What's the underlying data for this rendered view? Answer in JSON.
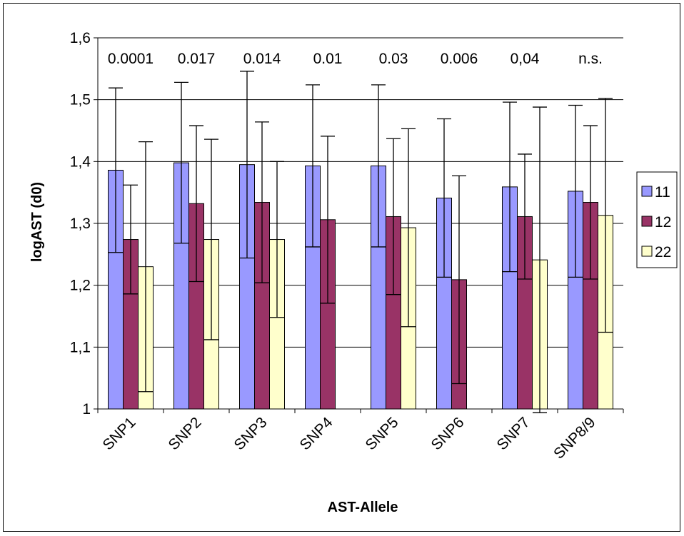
{
  "chart_data": {
    "type": "bar",
    "xlabel": "AST-Allele",
    "ylabel": "logAST (d0)",
    "ylim": [
      1,
      1.6
    ],
    "yticks": [
      "1",
      "1,1",
      "1,2",
      "1,3",
      "1,4",
      "1,5",
      "1,6"
    ],
    "grid": true,
    "legend_position": "right",
    "categories": [
      "SNP1",
      "SNP2",
      "SNP3",
      "SNP4",
      "SNP5",
      "SNP6",
      "SNP7",
      "SNP8/9"
    ],
    "annotations": [
      "0.0001",
      "0.017",
      "0.014",
      "0.01",
      "0.03",
      "0.006",
      "0,04",
      "n.s."
    ],
    "series": [
      {
        "name": "11",
        "color": "#9999ff",
        "values": [
          1.386,
          1.398,
          1.395,
          1.393,
          1.393,
          1.341,
          1.359,
          1.352
        ],
        "err": [
          0.133,
          0.13,
          0.151,
          0.131,
          0.131,
          0.128,
          0.137,
          0.139
        ]
      },
      {
        "name": "12",
        "color": "#993366",
        "values": [
          1.274,
          1.332,
          1.334,
          1.306,
          1.311,
          1.209,
          1.311,
          1.334
        ],
        "err": [
          0.088,
          0.126,
          0.13,
          0.135,
          0.126,
          0.168,
          0.101,
          0.124
        ]
      },
      {
        "name": "22",
        "color": "#ffffcc",
        "values": [
          1.23,
          1.274,
          1.274,
          null,
          1.293,
          null,
          1.241,
          1.313
        ],
        "err": [
          0.202,
          0.162,
          0.126,
          null,
          0.16,
          null,
          0.247,
          0.189
        ]
      }
    ]
  }
}
